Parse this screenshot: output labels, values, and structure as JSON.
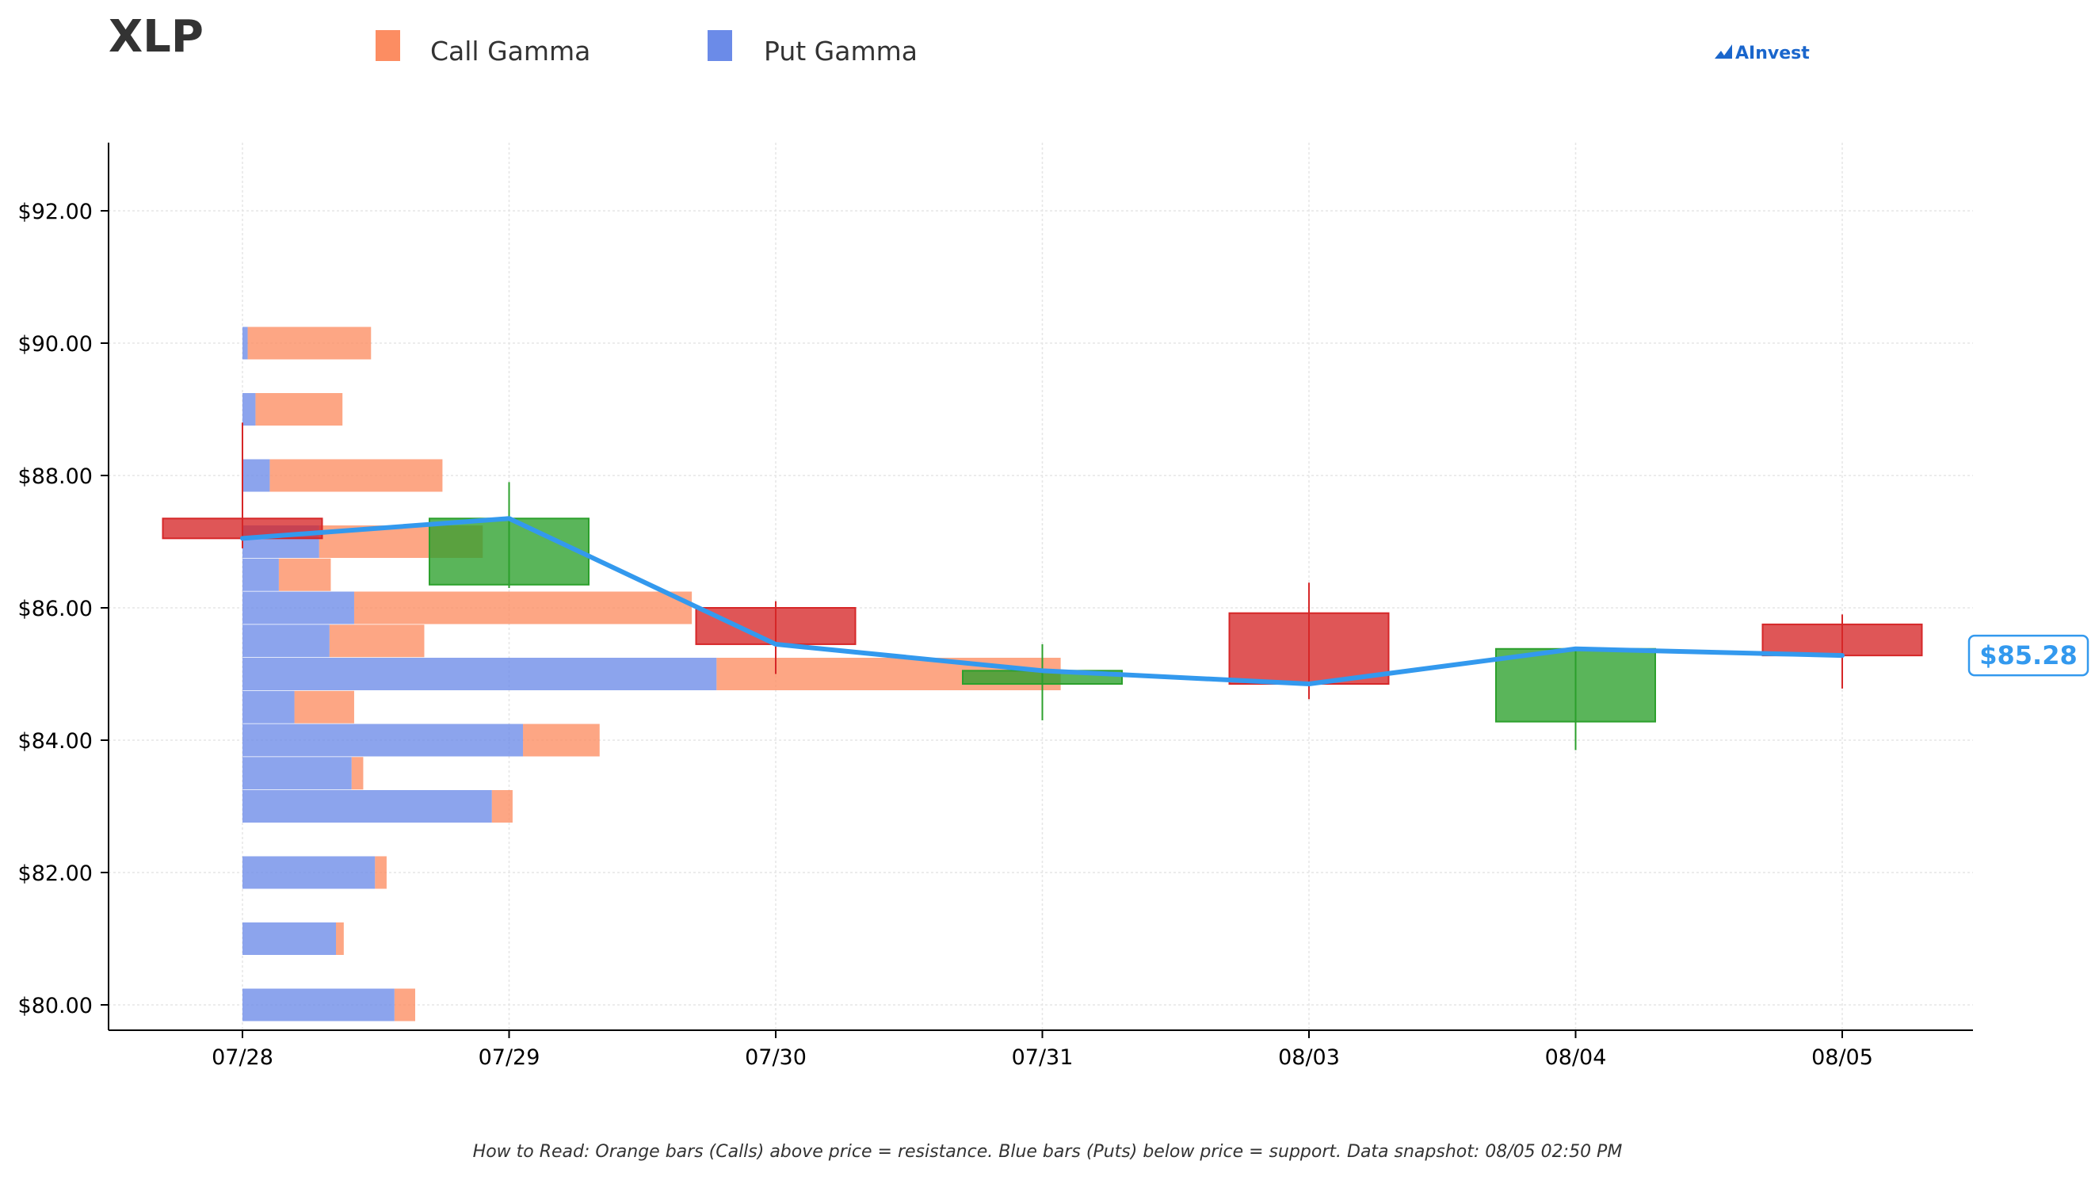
{
  "header": {
    "ticker": "XLP",
    "legend_call": "Call Gamma",
    "legend_put": "Put Gamma",
    "logo_text": "AInvest"
  },
  "footer": {
    "note": "How to Read: Orange bars (Calls) above price = resistance. Blue bars (Puts) below price = support. Data snapshot: 08/05 02:50 PM"
  },
  "colors": {
    "call": "#fc8d62",
    "put": "#6b8be8",
    "up": "#2ca02c",
    "down": "#d62728",
    "price_line": "#3399ee",
    "logo": "#1a66cc"
  },
  "chart_data": {
    "type": "candlestick_with_gamma_profile",
    "ticker": "XLP",
    "categories": [
      "07/28",
      "07/29",
      "07/30",
      "07/31",
      "08/03",
      "08/04",
      "08/05"
    ],
    "ohlc": [
      {
        "date": "07/28",
        "open": 87.35,
        "high": 88.8,
        "low": 86.9,
        "close": 87.05
      },
      {
        "date": "07/29",
        "open": 86.35,
        "high": 87.9,
        "low": 86.3,
        "close": 87.35
      },
      {
        "date": "07/30",
        "open": 86.0,
        "high": 86.1,
        "low": 85.0,
        "close": 85.45
      },
      {
        "date": "07/31",
        "open": 84.85,
        "high": 85.45,
        "low": 84.3,
        "close": 85.05
      },
      {
        "date": "08/03",
        "open": 85.92,
        "high": 86.38,
        "low": 84.62,
        "close": 84.85
      },
      {
        "date": "08/04",
        "open": 84.28,
        "high": 85.4,
        "low": 83.85,
        "close": 85.38
      },
      {
        "date": "08/05",
        "open": 85.75,
        "high": 85.9,
        "low": 84.78,
        "close": 85.28
      }
    ],
    "gamma_profile": {
      "strikes": [
        90,
        89,
        88,
        87,
        86.5,
        86,
        85.5,
        85,
        84.5,
        84,
        83.5,
        83,
        82,
        81,
        80
      ],
      "put_gamma": [
        0.04,
        0.1,
        0.21,
        0.59,
        0.28,
        0.86,
        0.67,
        3.65,
        0.4,
        2.16,
        0.84,
        1.92,
        1.02,
        0.72,
        1.17
      ],
      "call_gamma": [
        0.95,
        0.67,
        1.33,
        1.26,
        0.4,
        2.6,
        0.73,
        2.65,
        0.46,
        0.59,
        0.09,
        0.16,
        0.09,
        0.06,
        0.16
      ]
    },
    "last_price": 85.28,
    "last_price_label": "$85.28",
    "y_ticks": [
      "$80.00",
      "$82.00",
      "$84.00",
      "$86.00",
      "$88.00",
      "$90.00",
      "$92.00"
    ],
    "ylim": [
      79.6,
      93.0
    ],
    "grid": true,
    "legend_position": "top-left"
  }
}
